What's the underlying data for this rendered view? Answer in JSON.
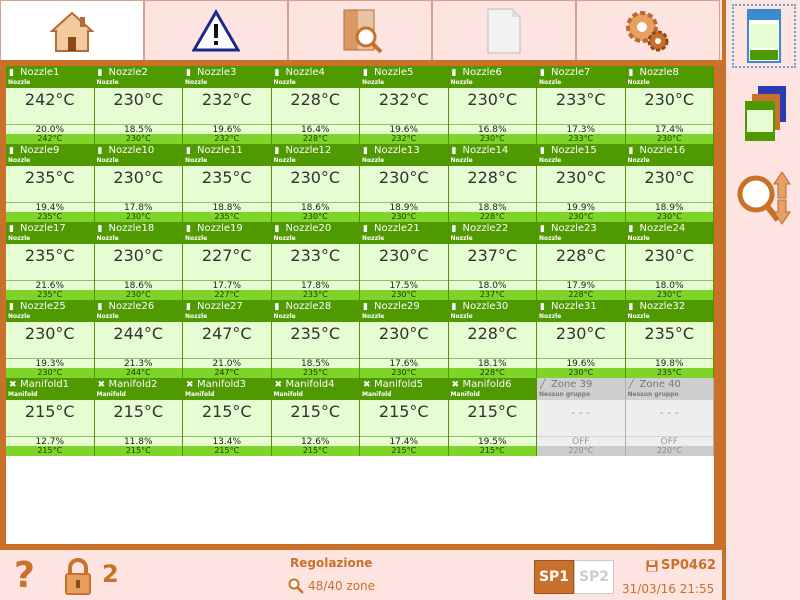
{
  "tabs": [
    {
      "name": "home-tab",
      "icon": "home-icon",
      "active": true
    },
    {
      "name": "alarms-tab",
      "icon": "warning-icon",
      "active": false
    },
    {
      "name": "search-tab",
      "icon": "search-document-icon",
      "active": false
    },
    {
      "name": "document-tab",
      "icon": "document-icon",
      "active": false
    },
    {
      "name": "settings-tab",
      "icon": "gears-icon",
      "active": false
    }
  ],
  "zones": [
    {
      "name": "Nozzle1",
      "type": "Nozzle",
      "temp": "242°C",
      "pct": "20.0%",
      "sp": "242°C"
    },
    {
      "name": "Nozzle2",
      "type": "Nozzle",
      "temp": "230°C",
      "pct": "18.5%",
      "sp": "230°C"
    },
    {
      "name": "Nozzle3",
      "type": "Nozzle",
      "temp": "232°C",
      "pct": "19.6%",
      "sp": "232°C"
    },
    {
      "name": "Nozzle4",
      "type": "Nozzle",
      "temp": "228°C",
      "pct": "16.4%",
      "sp": "228°C"
    },
    {
      "name": "Nozzle5",
      "type": "Nozzle",
      "temp": "232°C",
      "pct": "19.6%",
      "sp": "232°C"
    },
    {
      "name": "Nozzle6",
      "type": "Nozzle",
      "temp": "230°C",
      "pct": "16.8%",
      "sp": "230°C"
    },
    {
      "name": "Nozzle7",
      "type": "Nozzle",
      "temp": "233°C",
      "pct": "17.3%",
      "sp": "233°C"
    },
    {
      "name": "Nozzle8",
      "type": "Nozzle",
      "temp": "230°C",
      "pct": "17.4%",
      "sp": "230°C"
    },
    {
      "name": "Nozzle9",
      "type": "Nozzle",
      "temp": "235°C",
      "pct": "19.4%",
      "sp": "235°C"
    },
    {
      "name": "Nozzle10",
      "type": "Nozzle",
      "temp": "230°C",
      "pct": "17.8%",
      "sp": "230°C"
    },
    {
      "name": "Nozzle11",
      "type": "Nozzle",
      "temp": "235°C",
      "pct": "18.8%",
      "sp": "235°C"
    },
    {
      "name": "Nozzle12",
      "type": "Nozzle",
      "temp": "230°C",
      "pct": "18.6%",
      "sp": "230°C"
    },
    {
      "name": "Nozzle13",
      "type": "Nozzle",
      "temp": "230°C",
      "pct": "18.9%",
      "sp": "230°C"
    },
    {
      "name": "Nozzle14",
      "type": "Nozzle",
      "temp": "228°C",
      "pct": "18.8%",
      "sp": "228°C"
    },
    {
      "name": "Nozzle15",
      "type": "Nozzle",
      "temp": "230°C",
      "pct": "19.9%",
      "sp": "230°C"
    },
    {
      "name": "Nozzle16",
      "type": "Nozzle",
      "temp": "230°C",
      "pct": "18.9%",
      "sp": "230°C"
    },
    {
      "name": "Nozzle17",
      "type": "Nozzle",
      "temp": "235°C",
      "pct": "21.6%",
      "sp": "235°C"
    },
    {
      "name": "Nozzle18",
      "type": "Nozzle",
      "temp": "230°C",
      "pct": "18.6%",
      "sp": "230°C"
    },
    {
      "name": "Nozzle19",
      "type": "Nozzle",
      "temp": "227°C",
      "pct": "17.7%",
      "sp": "227°C"
    },
    {
      "name": "Nozzle20",
      "type": "Nozzle",
      "temp": "233°C",
      "pct": "17.8%",
      "sp": "233°C"
    },
    {
      "name": "Nozzle21",
      "type": "Nozzle",
      "temp": "230°C",
      "pct": "17.5%",
      "sp": "230°C"
    },
    {
      "name": "Nozzle22",
      "type": "Nozzle",
      "temp": "237°C",
      "pct": "18.0%",
      "sp": "237°C"
    },
    {
      "name": "Nozzle23",
      "type": "Nozzle",
      "temp": "228°C",
      "pct": "17.9%",
      "sp": "228°C"
    },
    {
      "name": "Nozzle24",
      "type": "Nozzle",
      "temp": "230°C",
      "pct": "18.0%",
      "sp": "230°C"
    },
    {
      "name": "Nozzle25",
      "type": "Nozzle",
      "temp": "230°C",
      "pct": "19.3%",
      "sp": "230°C"
    },
    {
      "name": "Nozzle26",
      "type": "Nozzle",
      "temp": "244°C",
      "pct": "21.3%",
      "sp": "244°C"
    },
    {
      "name": "Nozzle27",
      "type": "Nozzle",
      "temp": "247°C",
      "pct": "21.0%",
      "sp": "247°C"
    },
    {
      "name": "Nozzle28",
      "type": "Nozzle",
      "temp": "235°C",
      "pct": "18.5%",
      "sp": "235°C"
    },
    {
      "name": "Nozzle29",
      "type": "Nozzle",
      "temp": "230°C",
      "pct": "17.6%",
      "sp": "230°C"
    },
    {
      "name": "Nozzle30",
      "type": "Nozzle",
      "temp": "228°C",
      "pct": "18.1%",
      "sp": "228°C"
    },
    {
      "name": "Nozzle31",
      "type": "Nozzle",
      "temp": "230°C",
      "pct": "19.6%",
      "sp": "230°C"
    },
    {
      "name": "Nozzle32",
      "type": "Nozzle",
      "temp": "235°C",
      "pct": "19.8%",
      "sp": "235°C"
    },
    {
      "name": "Manifold1",
      "type": "Manifold",
      "temp": "215°C",
      "pct": "12.7%",
      "sp": "215°C"
    },
    {
      "name": "Manifold2",
      "type": "Manifold",
      "temp": "215°C",
      "pct": "11.8%",
      "sp": "215°C"
    },
    {
      "name": "Manifold3",
      "type": "Manifold",
      "temp": "215°C",
      "pct": "13.4%",
      "sp": "215°C"
    },
    {
      "name": "Manifold4",
      "type": "Manifold",
      "temp": "215°C",
      "pct": "12.6%",
      "sp": "215°C"
    },
    {
      "name": "Manifold5",
      "type": "Manifold",
      "temp": "215°C",
      "pct": "17.4%",
      "sp": "215°C"
    },
    {
      "name": "Manifold6",
      "type": "Manifold",
      "temp": "215°C",
      "pct": "19.5%",
      "sp": "215°C"
    },
    {
      "name": "Zone 39",
      "type": "Nessun gruppo",
      "temp": "- - -",
      "pct": "OFF",
      "sp": "220°C",
      "inactive": true
    },
    {
      "name": "Zone 40",
      "type": "Nessun gruppo",
      "temp": "- - -",
      "pct": "OFF",
      "sp": "220°C",
      "inactive": true
    }
  ],
  "status": {
    "help": "?",
    "access_level": "2",
    "mode": "Regolazione",
    "zone_count": "48/40 zone",
    "sp1": "SP1",
    "sp2": "SP2",
    "program": "SP0462",
    "datetime": "31/03/16 21:55"
  },
  "colors": {
    "accent": "#c9702a",
    "zone_header": "#4f9a00",
    "zone_body": "#e6fcd2",
    "setpoint_bar": "#7fd42a"
  }
}
